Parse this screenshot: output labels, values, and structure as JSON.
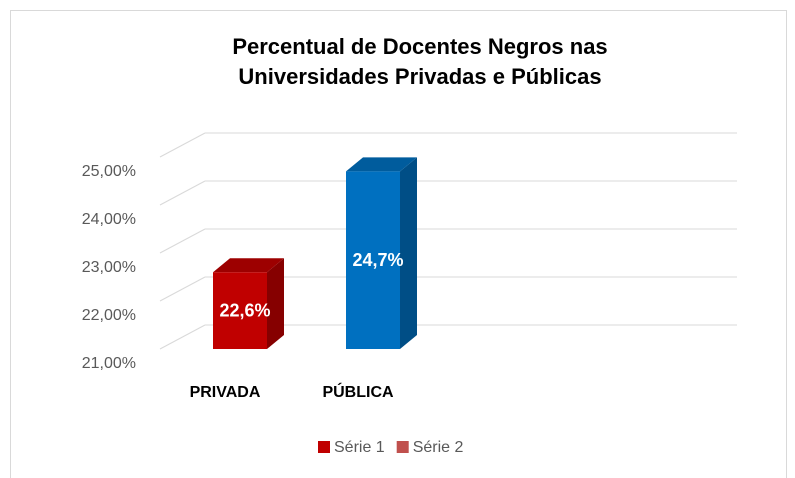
{
  "chart_data": {
    "type": "bar3d",
    "title": [
      "Percentual de Docentes Negros nas",
      "Universidades Privadas e Públicas"
    ],
    "categories": [
      "PRIVADA",
      "PÚBLICA"
    ],
    "series": [
      {
        "name": "Série 1",
        "color": "#c00000",
        "colors": [
          "#c00000",
          "#0070c0"
        ],
        "values": [
          22.6,
          24.7
        ],
        "value_labels": [
          "22,6%",
          "24,7%"
        ]
      },
      {
        "name": "Série 2",
        "color": "#c0504d",
        "values": [
          null,
          null
        ]
      }
    ],
    "ylim": [
      21,
      25
    ],
    "yticks": [
      {
        "value": 21,
        "label": "21,00%"
      },
      {
        "value": 22,
        "label": "22,00%"
      },
      {
        "value": 23,
        "label": "23,00%"
      },
      {
        "value": 24,
        "label": "24,00%"
      },
      {
        "value": 25,
        "label": "25,00%"
      }
    ],
    "grid": true,
    "legend": "bottom"
  }
}
